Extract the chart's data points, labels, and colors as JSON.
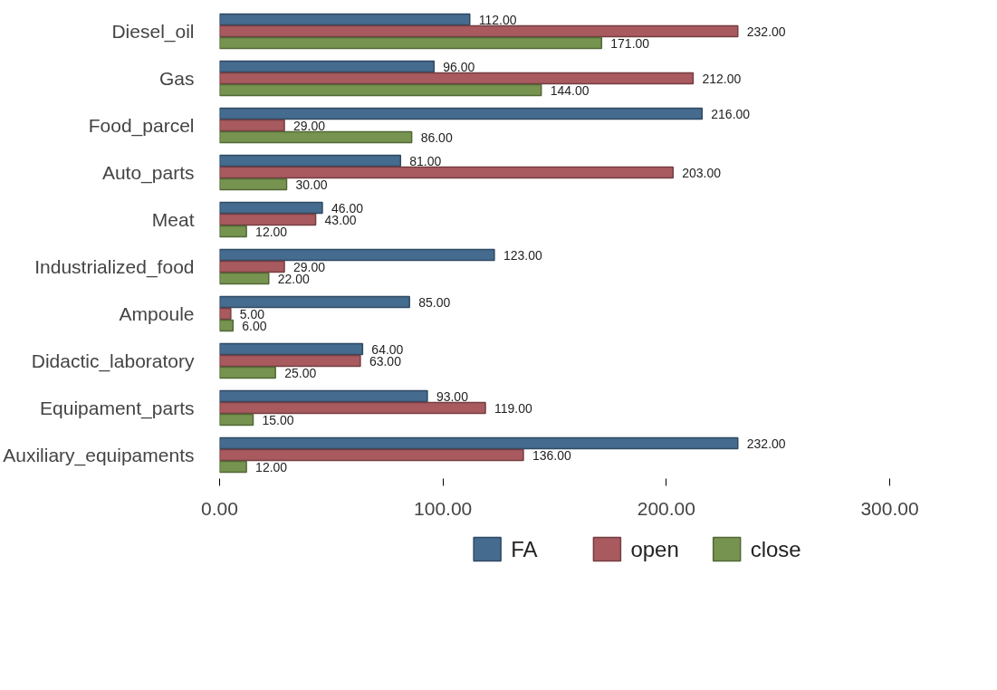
{
  "chart_data": {
    "type": "bar",
    "orientation": "horizontal",
    "categories": [
      "Diesel_oil",
      "Gas",
      "Food_parcel",
      "Auto_parts",
      "Meat",
      "Industrialized_food",
      "Ampoule",
      "Didactic_laboratory",
      "Equipament_parts",
      "Auxiliary_equipaments"
    ],
    "series": [
      {
        "name": "FA",
        "color": "#456b8e",
        "values": [
          112,
          96,
          216,
          81,
          46,
          123,
          85,
          64,
          93,
          232
        ],
        "value_labels": [
          "112.00",
          "96.00",
          "216.00",
          "81.00",
          "46.00",
          "123.00",
          "85.00",
          "64.00",
          "93.00",
          "232.00"
        ]
      },
      {
        "name": "open",
        "color": "#a85a5f",
        "values": [
          232,
          212,
          29,
          203,
          43,
          29,
          5,
          63,
          119,
          136
        ],
        "value_labels": [
          "232.00",
          "212.00",
          "29.00",
          "203.00",
          "43.00",
          "29.00",
          "5.00",
          "63.00",
          "119.00",
          "136.00"
        ]
      },
      {
        "name": "close",
        "color": "#76944f",
        "values": [
          171,
          144,
          86,
          30,
          12,
          22,
          6,
          25,
          15,
          12
        ],
        "value_labels": [
          "171.00",
          "144.00",
          "86.00",
          "30.00",
          "12.00",
          "22.00",
          "6.00",
          "25.00",
          "15.00",
          "12.00"
        ]
      }
    ],
    "xlim": [
      0,
      300
    ],
    "xticks": [
      {
        "value": 0,
        "label": "0.00"
      },
      {
        "value": 100,
        "label": "100.00"
      },
      {
        "value": 200,
        "label": "200.00"
      },
      {
        "value": 300,
        "label": "300.00"
      }
    ],
    "grid": false,
    "legend": "bottom"
  }
}
